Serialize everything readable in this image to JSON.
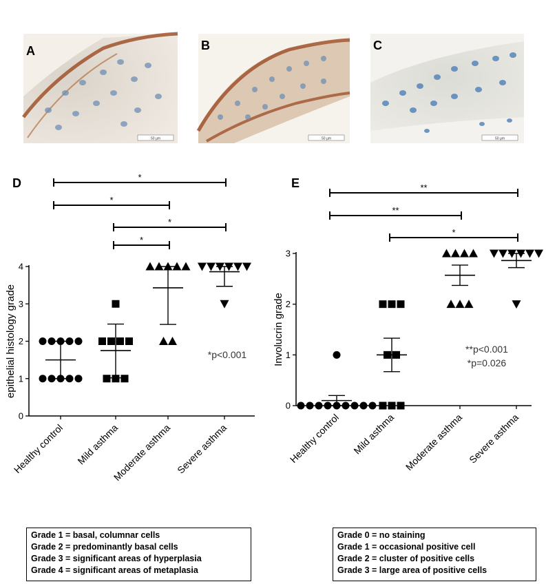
{
  "panels": {
    "A": "A",
    "B": "B",
    "C": "C",
    "D": "D",
    "E": "E"
  },
  "micrographs": [
    {
      "label": "A",
      "scale_label": "50 µm",
      "stain": "brown membrane staining, strong"
    },
    {
      "label": "B",
      "scale_label": "50 µm",
      "stain": "brown membrane staining, strong"
    },
    {
      "label": "C",
      "scale_label": "50 µm",
      "stain": "no staining"
    }
  ],
  "chart_data": [
    {
      "panel": "D",
      "type": "scatter",
      "ylabel": "epithelial histology grade",
      "xlabel": "",
      "ylim": [
        0,
        4
      ],
      "yticks": [
        0,
        1,
        2,
        3,
        4
      ],
      "categories": [
        "Healthy control",
        "Mild asthma",
        "Moderate asthma",
        "Severe asthma"
      ],
      "markers": [
        "circle",
        "square",
        "triangle-up",
        "triangle-down"
      ],
      "points": [
        [
          1,
          1,
          1,
          1,
          1,
          2,
          2,
          2,
          2,
          2
        ],
        [
          1,
          1,
          1,
          2,
          2,
          2,
          2,
          3
        ],
        [
          2,
          2,
          4,
          4,
          4,
          4,
          4
        ],
        [
          3,
          4,
          4,
          4,
          4,
          4,
          4
        ]
      ],
      "mean": [
        1.5,
        1.75,
        3.43,
        3.86
      ],
      "error_low": [
        1.0,
        1.02,
        2.45,
        3.47
      ],
      "error_high": [
        2.0,
        2.46,
        4.0,
        4.0
      ],
      "annotation": "*p<0.001",
      "significance": [
        {
          "from": 0,
          "to": 3,
          "label": "*"
        },
        {
          "from": 0,
          "to": 2,
          "label": "*"
        },
        {
          "from": 1,
          "to": 3,
          "label": "*"
        },
        {
          "from": 1,
          "to": 2,
          "label": "*"
        }
      ],
      "legend": [
        "Grade 1 = basal, columnar cells",
        "Grade 2 = predominantly basal cells",
        "Grade 3 = significant areas of hyperplasia",
        "Grade 4 = significant areas of metaplasia"
      ]
    },
    {
      "panel": "E",
      "type": "scatter",
      "ylabel": "Involucrin grade",
      "xlabel": "",
      "ylim": [
        0,
        3
      ],
      "yticks": [
        0,
        1,
        2,
        3
      ],
      "categories": [
        "Healthy control",
        "Mild asthma",
        "Moderate asthma",
        "Severe asthma"
      ],
      "markers": [
        "circle",
        "square",
        "triangle-up",
        "triangle-down"
      ],
      "points": [
        [
          0,
          0,
          0,
          0,
          0,
          0,
          0,
          0,
          0,
          1
        ],
        [
          0,
          0,
          0,
          1,
          1,
          2,
          2,
          2
        ],
        [
          2,
          2,
          2,
          3,
          3,
          3,
          3
        ],
        [
          2,
          3,
          3,
          3,
          3,
          3,
          3
        ]
      ],
      "mean": [
        0.1,
        1.0,
        2.57,
        2.86
      ],
      "error_low": [
        0.0,
        0.67,
        2.37,
        2.72
      ],
      "error_high": [
        0.2,
        1.33,
        2.77,
        3.0
      ],
      "annotation_lines": [
        "**p<0.001",
        "*p=0.026"
      ],
      "significance": [
        {
          "from": 0,
          "to": 3,
          "label": "**"
        },
        {
          "from": 0,
          "to": 2,
          "label": "**"
        },
        {
          "from": 1,
          "to": 3,
          "label": "*"
        }
      ],
      "legend": [
        "Grade 0 = no staining",
        "Grade 1 = occasional positive cell",
        "Grade 2 = cluster of positive cells",
        "Grade 3 = large area of positive cells"
      ]
    }
  ]
}
